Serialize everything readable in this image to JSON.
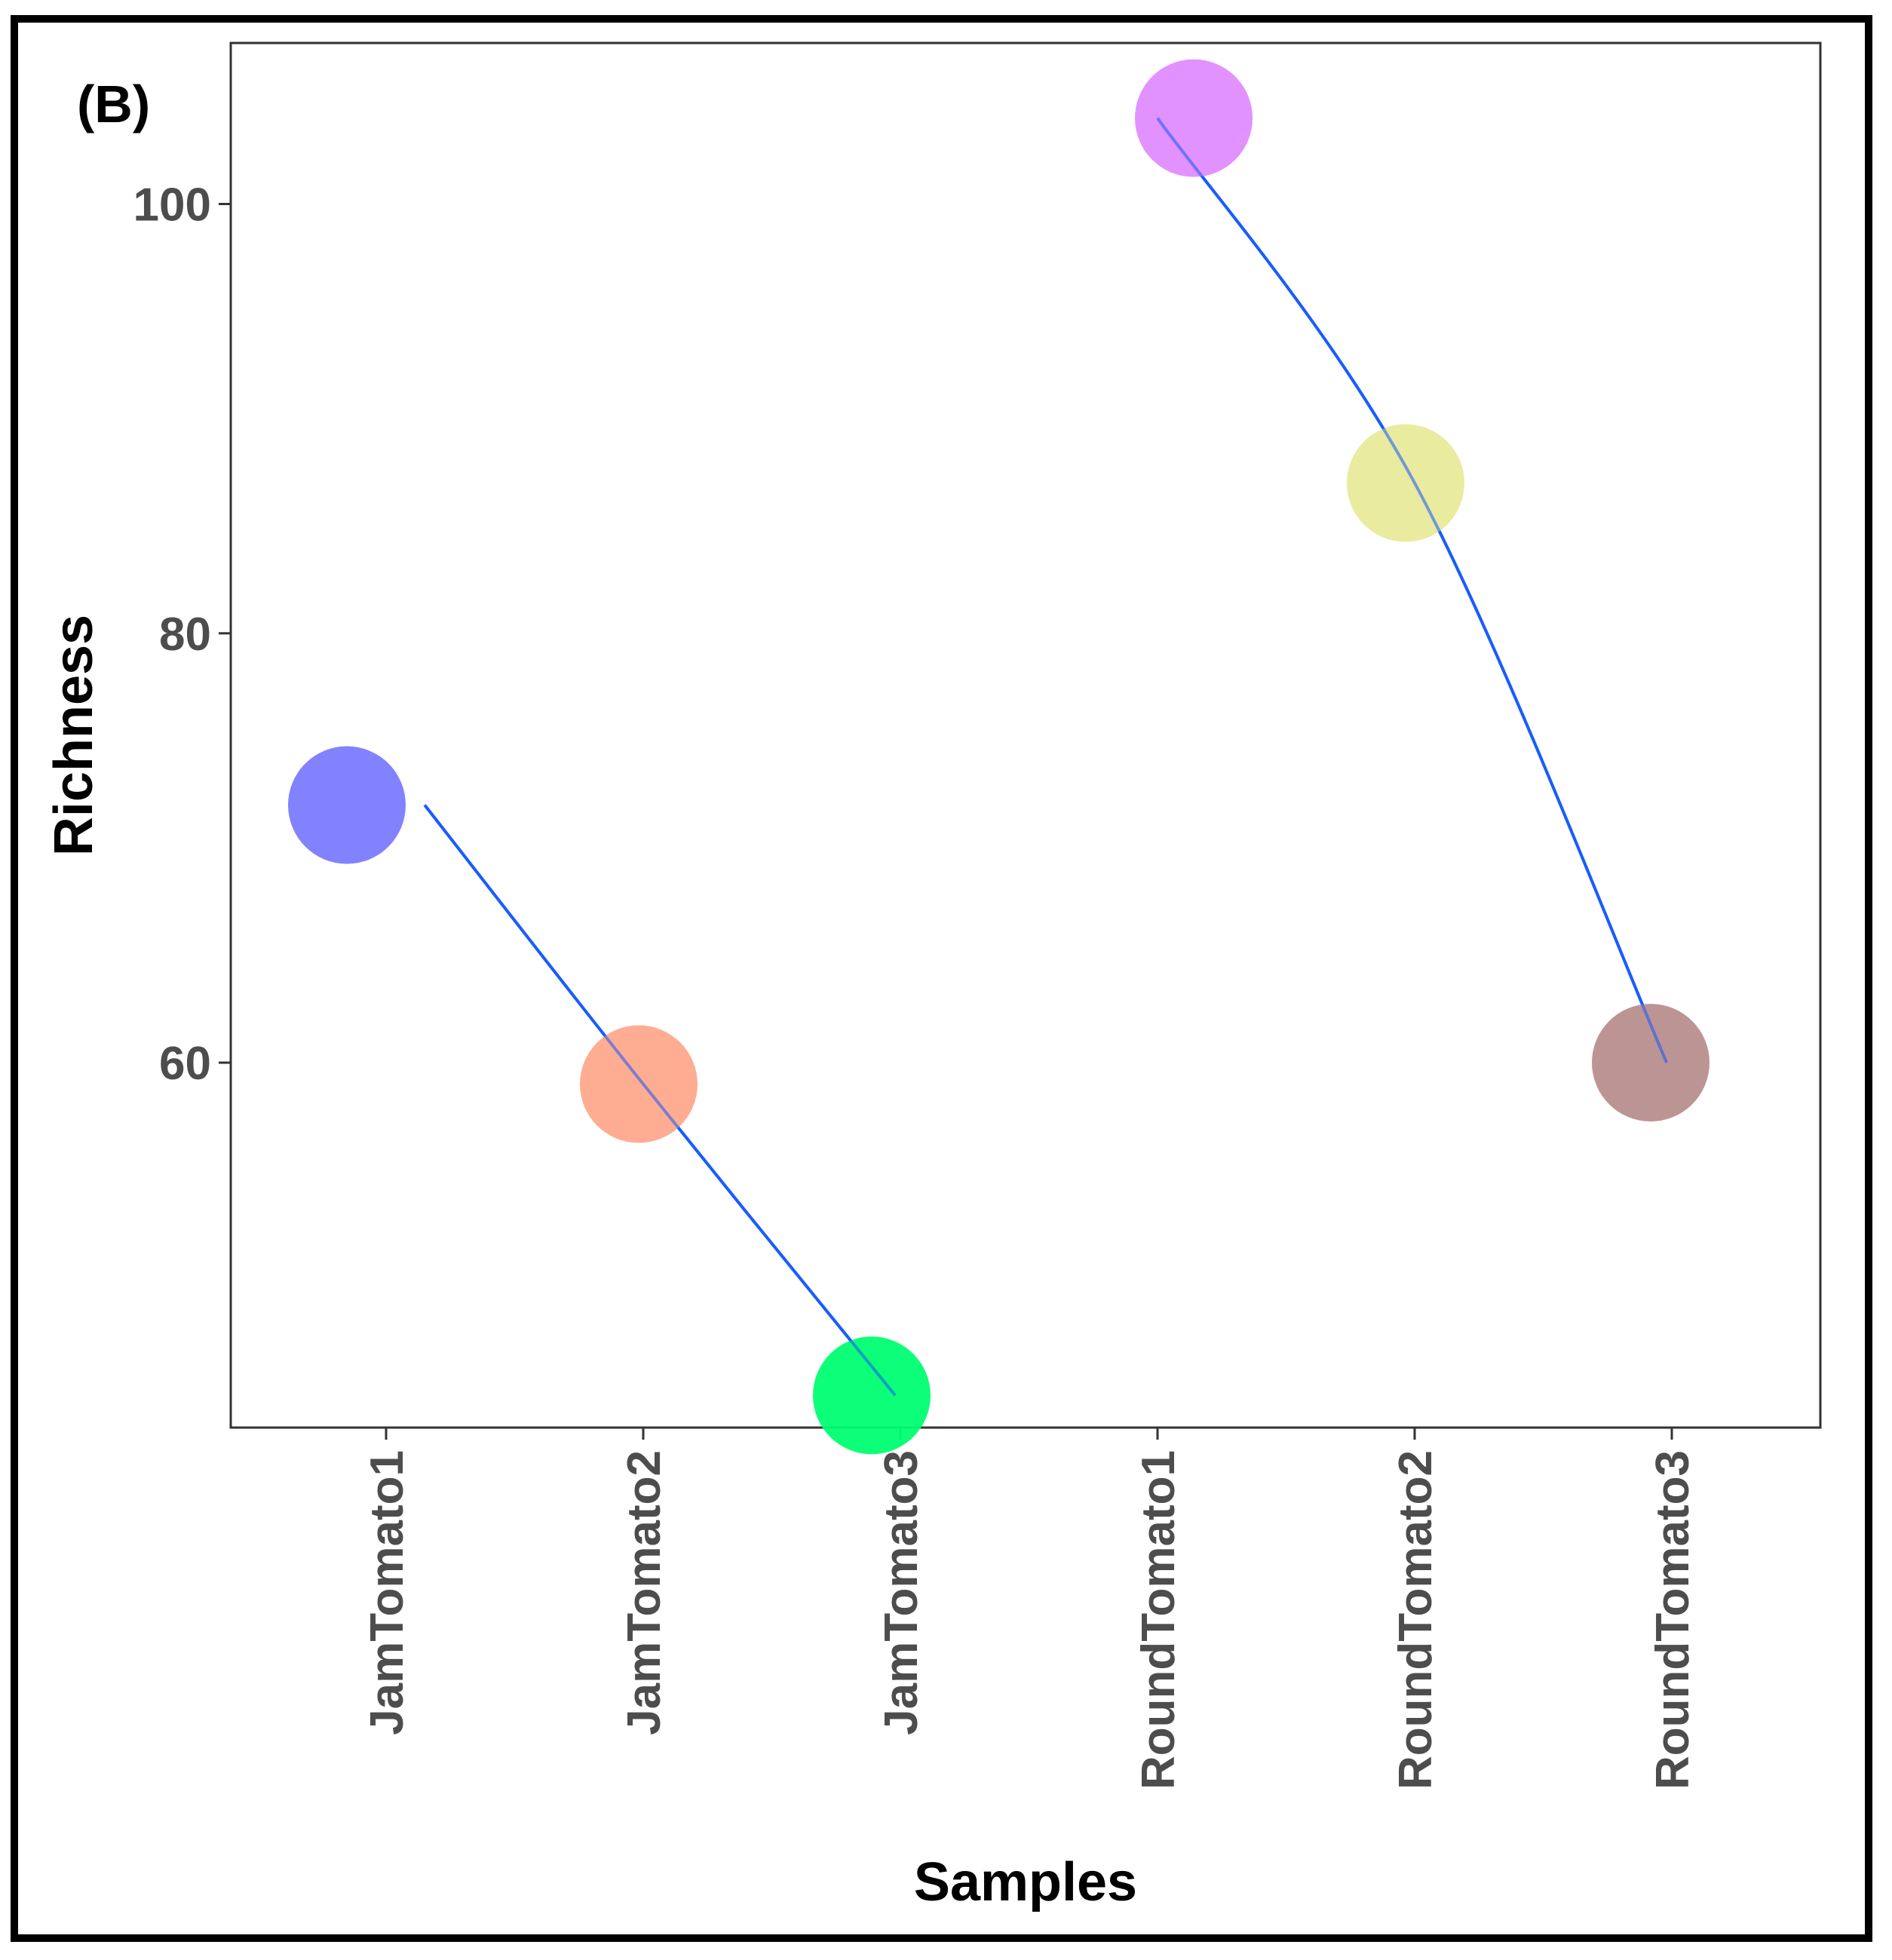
{
  "panel_label": "(B)",
  "chart_data": {
    "type": "scatter",
    "title": "",
    "xlabel": "Samples",
    "ylabel": "Richness",
    "categories": [
      "JamTomato1",
      "JamTomato2",
      "JamTomato3",
      "RoundTomato1",
      "RoundTomato2",
      "RoundTomato3"
    ],
    "values": [
      72,
      59,
      44.5,
      104,
      87,
      60
    ],
    "point_colors": [
      "#7b7bff",
      "#ffa98c",
      "#00ff72",
      "#e08cff",
      "#e8ea9a",
      "#b98e8e"
    ],
    "ylim": [
      43,
      107.5
    ],
    "yticks": [
      60,
      80,
      100
    ],
    "ytick_labels": [
      "60",
      "80",
      "100"
    ],
    "grid": false,
    "smooth_lines": [
      {
        "group": "JamTomato",
        "color": "#1a5cff",
        "points": [
          [
            0.15,
            72
          ],
          [
            1,
            59
          ],
          [
            1.98,
            44.5
          ]
        ]
      },
      {
        "group": "RoundTomato",
        "color": "#1a5cff",
        "points": [
          [
            3,
            104
          ],
          [
            4,
            87
          ],
          [
            4.98,
            60
          ]
        ]
      }
    ]
  }
}
